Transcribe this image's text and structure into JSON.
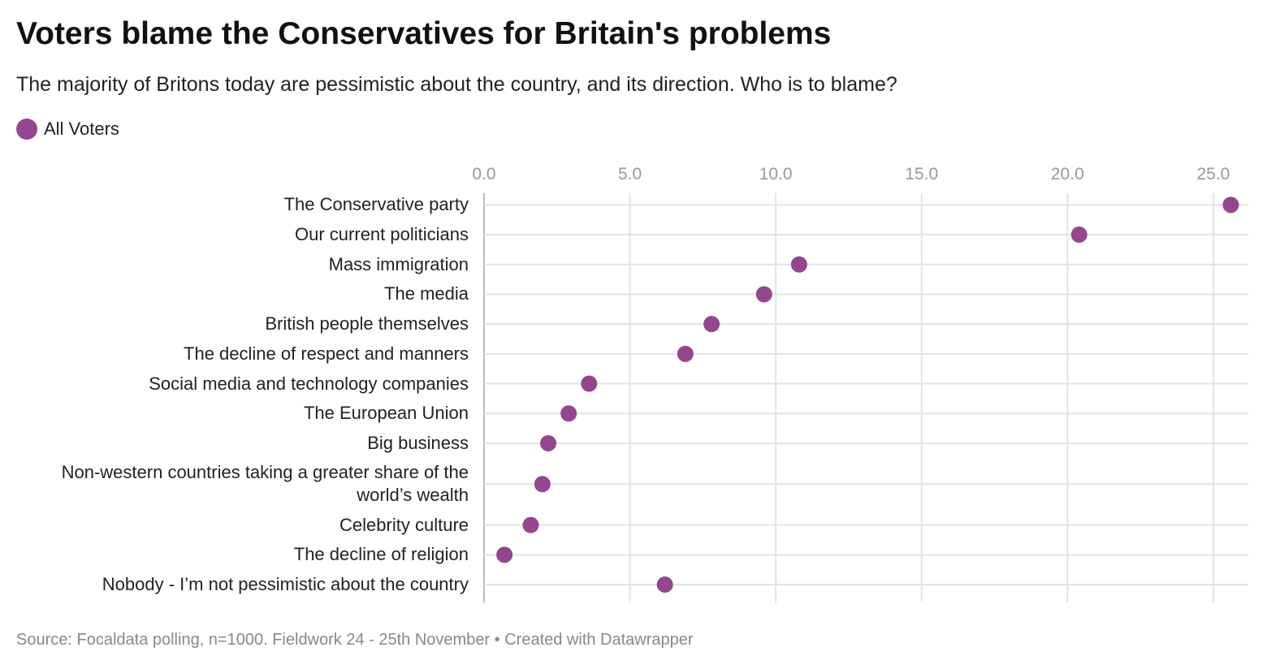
{
  "chart_data": {
    "type": "dot",
    "title": "Voters blame the Conservatives for Britain's problems",
    "subtitle": "The majority of Britons today are pessimistic about the country, and its direction. Who is to blame?",
    "source": "Source: Focaldata polling, n=1000. Fieldwork 24 - 25th November • Created with Datawrapper",
    "categories": [
      "The Conservative party",
      "Our current politicians",
      "Mass immigration",
      "The media",
      "British people themselves",
      "The decline of respect and manners",
      "Social media and technology companies",
      "The European Union",
      "Big business",
      "Non-western countries taking a greater share of the world’s wealth",
      "Celebrity culture",
      "The decline of religion",
      "Nobody - I’m not pessimistic about the country"
    ],
    "series": [
      {
        "name": "All Voters",
        "color": "#94468f",
        "values": [
          25.6,
          20.4,
          10.8,
          9.6,
          7.8,
          6.9,
          3.6,
          2.9,
          2.2,
          2.0,
          1.6,
          0.7,
          6.2
        ]
      }
    ],
    "xlim": [
      0,
      26.2
    ],
    "xticks": [
      {
        "value": 0,
        "label": "0.0"
      },
      {
        "value": 5,
        "label": "5.0"
      },
      {
        "value": 10,
        "label": "10.0"
      },
      {
        "value": 15,
        "label": "15.0"
      },
      {
        "value": 20,
        "label": "20.0"
      },
      {
        "value": 25,
        "label": "25.0"
      }
    ],
    "grid": true
  }
}
